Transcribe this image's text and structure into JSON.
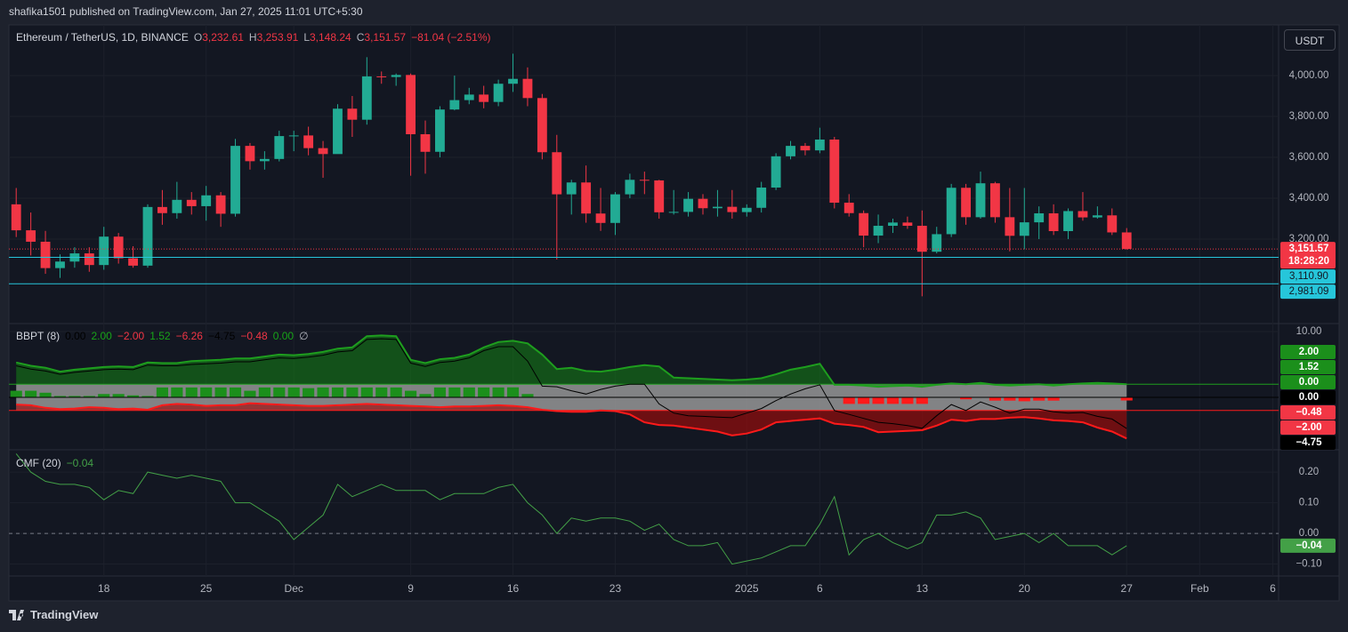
{
  "header": {
    "publisher": "shafika1501 published on TradingView.com, Jan 27, 2025 11:01 UTC+5:30"
  },
  "footer": {
    "brand": "TradingView"
  },
  "currency_button": "USDT",
  "chart_data": [
    {
      "type": "candlestick",
      "title": "Ethereum / TetherUS, 1D, BINANCE",
      "ohlc_legend": [
        [
          "O",
          "3,232.61"
        ],
        [
          "H",
          "3,253.91"
        ],
        [
          "L",
          "3,148.24"
        ],
        [
          "C",
          "3,151.57"
        ]
      ],
      "change": "−81.04 (−2.51%)",
      "up_color": "#22ab94",
      "down_color": "#f23645",
      "x": [
        0,
        1,
        2,
        3,
        4,
        5,
        6,
        7,
        8,
        9,
        10,
        11,
        12,
        13,
        14,
        15,
        16,
        17,
        18,
        19,
        20,
        21,
        22,
        23,
        24,
        25,
        26,
        27,
        28,
        29,
        30,
        31,
        32,
        33,
        34,
        35,
        36,
        37,
        38,
        39,
        40,
        41,
        42,
        43,
        44,
        45,
        46,
        47,
        48,
        49,
        50,
        51,
        52,
        53,
        54,
        55,
        56,
        57,
        58,
        59,
        60,
        61,
        62,
        63,
        64,
        65,
        66,
        67,
        68,
        69,
        70,
        71,
        72,
        73,
        74,
        75,
        76
      ],
      "open": [
        3370,
        3243,
        3187,
        3058,
        3090,
        3130,
        3073,
        3212,
        3106,
        3070,
        3357,
        3327,
        3392,
        3361,
        3414,
        3324,
        3656,
        3581,
        3592,
        3704,
        3707,
        3645,
        3616,
        3838,
        3784,
        3996,
        3993,
        4003,
        3713,
        3627,
        3834,
        3880,
        3907,
        3871,
        3960,
        3984,
        3890,
        3625,
        3419,
        3477,
        3325,
        3279,
        3419,
        3490,
        3487,
        3331,
        3333,
        3397,
        3351,
        3358,
        3332,
        3353,
        3452,
        3605,
        3656,
        3634,
        3687,
        3378,
        3327,
        3217,
        3265,
        3281,
        3265,
        3138,
        3224,
        3451,
        3307,
        3473,
        3307,
        3216,
        3282,
        3326,
        3239,
        3337,
        3306,
        3316,
        3232.61
      ],
      "high": [
        3450,
        3330,
        3240,
        3125,
        3160,
        3160,
        3260,
        3230,
        3165,
        3370,
        3440,
        3480,
        3430,
        3460,
        3430,
        3690,
        3670,
        3630,
        3730,
        3730,
        3750,
        3680,
        3860,
        3900,
        4090,
        4020,
        4010,
        4010,
        3780,
        3850,
        4000,
        3940,
        3950,
        3980,
        4107,
        4040,
        3910,
        3710,
        3490,
        3560,
        3450,
        3430,
        3520,
        3530,
        3490,
        3440,
        3430,
        3420,
        3440,
        3440,
        3370,
        3480,
        3620,
        3680,
        3670,
        3745,
        3700,
        3420,
        3340,
        3320,
        3300,
        3310,
        3340,
        3260,
        3470,
        3470,
        3530,
        3480,
        3450,
        3450,
        3360,
        3370,
        3350,
        3430,
        3360,
        3350,
        3253.91
      ],
      "low": [
        3210,
        3120,
        3030,
        3010,
        3060,
        3040,
        3050,
        3080,
        3060,
        3060,
        3270,
        3300,
        3320,
        3290,
        3260,
        3310,
        3540,
        3540,
        3580,
        3630,
        3610,
        3500,
        3620,
        3700,
        3760,
        3960,
        3950,
        3510,
        3520,
        3600,
        3830,
        3860,
        3840,
        3850,
        3920,
        3850,
        3590,
        3100,
        3320,
        3280,
        3240,
        3220,
        3400,
        3420,
        3300,
        3320,
        3310,
        3320,
        3310,
        3300,
        3310,
        3330,
        3440,
        3590,
        3610,
        3620,
        3350,
        3310,
        3160,
        3180,
        3230,
        3250,
        2920,
        3130,
        3210,
        3270,
        3300,
        3280,
        3140,
        3150,
        3200,
        3220,
        3200,
        3290,
        3300,
        3220,
        3148.24
      ],
      "close": [
        3243,
        3187,
        3058,
        3090,
        3130,
        3073,
        3212,
        3106,
        3070,
        3357,
        3327,
        3392,
        3361,
        3414,
        3324,
        3656,
        3581,
        3592,
        3704,
        3707,
        3645,
        3616,
        3838,
        3784,
        3996,
        3993,
        4003,
        3713,
        3627,
        3834,
        3880,
        3907,
        3871,
        3960,
        3984,
        3890,
        3625,
        3419,
        3477,
        3325,
        3279,
        3419,
        3490,
        3487,
        3331,
        3333,
        3397,
        3351,
        3358,
        3332,
        3353,
        3452,
        3605,
        3656,
        3634,
        3687,
        3378,
        3327,
        3217,
        3265,
        3281,
        3265,
        3138,
        3224,
        3451,
        3307,
        3473,
        3307,
        3216,
        3282,
        3326,
        3239,
        3337,
        3306,
        3316,
        3232.61,
        3151.57
      ],
      "xlim": [
        -0.5,
        86.4
      ],
      "xticks": [
        {
          "value": 6,
          "label": "18"
        },
        {
          "value": 13,
          "label": "25"
        },
        {
          "value": 19,
          "label": "Dec"
        },
        {
          "value": 27,
          "label": "9"
        },
        {
          "value": 34,
          "label": "16"
        },
        {
          "value": 41,
          "label": "23"
        },
        {
          "value": 50,
          "label": "2025"
        },
        {
          "value": 55,
          "label": "6"
        },
        {
          "value": 62,
          "label": "13"
        },
        {
          "value": 69,
          "label": "20"
        },
        {
          "value": 76,
          "label": "27"
        },
        {
          "value": 81,
          "label": "Feb"
        },
        {
          "value": 86,
          "label": "6"
        }
      ],
      "ylim": [
        2791,
        4248
      ],
      "yticks": [
        {
          "value": 3200,
          "label": "3,200.00"
        },
        {
          "value": 3400,
          "label": "3,400.00"
        },
        {
          "value": 3600,
          "label": "3,600.00"
        },
        {
          "value": 3800,
          "label": "3,800.00"
        },
        {
          "value": 4000,
          "label": "4,000.00"
        }
      ],
      "last_price": {
        "value": 3151.57,
        "label": "3,151.57",
        "countdown": "18:28:20"
      },
      "hlines": [
        {
          "value": 3110.9,
          "label": "3,110.90"
        },
        {
          "value": 2981.09,
          "label": "2,981.09"
        }
      ],
      "hline_color": "#26c6da",
      "grid": true
    },
    {
      "type": "bands",
      "title": "BBPT (8)",
      "legend_values": [
        "0.00",
        "2.00",
        "−2.00",
        "1.52",
        "−6.26",
        "−4.75",
        "−0.48",
        "0.00",
        "∅"
      ],
      "legend_colors": [
        "#000000",
        "#18a418",
        "#f23645",
        "#18a418",
        "#f23645",
        "#000000",
        "#f23645",
        "#18a418",
        "#b2b5be"
      ],
      "upper": [
        5.3,
        4.8,
        4.5,
        3.9,
        4.2,
        4.4,
        4.6,
        4.7,
        4.6,
        5.3,
        5.2,
        5.2,
        5.5,
        5.6,
        5.7,
        5.9,
        5.9,
        6.2,
        6.5,
        6.4,
        6.6,
        6.9,
        7.4,
        7.6,
        9.3,
        9.4,
        9.3,
        5.7,
        5.2,
        5.8,
        6.0,
        6.5,
        7.6,
        8.4,
        8.6,
        8.2,
        6.5,
        4.3,
        4.5,
        4.0,
        3.9,
        4.2,
        4.6,
        4.9,
        4.7,
        3.0,
        2.9,
        2.8,
        2.7,
        2.6,
        2.7,
        2.9,
        3.5,
        4.2,
        4.6,
        5.1,
        1.9,
        1.9,
        1.8,
        1.6,
        1.7,
        1.8,
        1.6,
        1.9,
        2.1,
        2.0,
        2.2,
        1.9,
        1.8,
        1.9,
        2.0,
        1.8,
        2.0,
        2.1,
        2.2,
        2.1,
        2
      ],
      "lower": [
        -1.1,
        -1.2,
        -1.6,
        -1.8,
        -1.7,
        -1.5,
        -1.6,
        -1.8,
        -1.7,
        -1.9,
        -1.2,
        -1.0,
        -1.1,
        -1.3,
        -1.2,
        -1.2,
        -0.9,
        -1.0,
        -1.1,
        -1.2,
        -1.3,
        -1.3,
        -1.2,
        -1.1,
        -1.0,
        -1.1,
        -1.2,
        -1.3,
        -1.4,
        -1.5,
        -1.4,
        -1.4,
        -1.3,
        -1.2,
        -1.3,
        -1.5,
        -1.9,
        -2.1,
        -2.2,
        -2.2,
        -2.0,
        -2.1,
        -2.6,
        -3.8,
        -4.2,
        -4.3,
        -4.6,
        -4.9,
        -5.2,
        -5.8,
        -5.5,
        -4.9,
        -3.8,
        -3.6,
        -3.4,
        -3.2,
        -4.0,
        -4.2,
        -4.5,
        -5.3,
        -5.2,
        -5.1,
        -5.0,
        -4.3,
        -3.4,
        -3.6,
        -3.3,
        -3.3,
        -3.1,
        -3.0,
        -3.2,
        -3.5,
        -3.6,
        -3.8,
        -4.6,
        -5.2,
        -6.26
      ],
      "power": [
        4.8,
        4.3,
        4.0,
        3.5,
        3.8,
        4.0,
        4.2,
        4.3,
        4.2,
        4.9,
        4.8,
        4.8,
        5.0,
        5.1,
        5.2,
        5.4,
        5.4,
        5.7,
        6.0,
        5.9,
        6.1,
        6.4,
        6.9,
        7.1,
        8.8,
        8.9,
        8.8,
        5.2,
        4.7,
        5.3,
        5.5,
        6.0,
        7.1,
        7.7,
        7.7,
        5.5,
        1.7,
        1.6,
        1.0,
        0.5,
        1.2,
        1.7,
        2.0,
        2.0,
        -1.0,
        -2.4,
        -2.8,
        -2.9,
        -3.0,
        -3.1,
        -2.4,
        -1.7,
        -0.5,
        0.5,
        1.3,
        1.9,
        -2.0,
        -2.6,
        -3.2,
        -3.8,
        -4.0,
        -4.3,
        -4.7,
        -2.8,
        -1.1,
        -2.0,
        -0.7,
        -1.5,
        -2.4,
        -1.8,
        -1.8,
        -2.2,
        -2.4,
        -2.3,
        -2.9,
        -3.3,
        -4.75
      ],
      "histogram": [
        1.0,
        1.0,
        0.7,
        0.2,
        0.2,
        0.2,
        0.5,
        0.5,
        0.3,
        0.2,
        1.5,
        1.5,
        1.5,
        1.5,
        1.5,
        1.5,
        1.0,
        1.5,
        1.5,
        1.5,
        1.4,
        1.5,
        1.5,
        1.5,
        1.5,
        1.5,
        1.5,
        1.0,
        0.5,
        1.5,
        1.5,
        1.5,
        1.5,
        1.5,
        1.52,
        0.5,
        0,
        0,
        0,
        0,
        0,
        0,
        0,
        0,
        0,
        0,
        0,
        0,
        0,
        0,
        0,
        0,
        0,
        0,
        0,
        0,
        0,
        -1.0,
        -1.0,
        -1.0,
        -1.0,
        -1.0,
        -1.0,
        0,
        0,
        -0.3,
        0,
        -0.5,
        -0.5,
        -0.6,
        -0.5,
        -0.5,
        0,
        0,
        0,
        0,
        -0.48
      ],
      "upper_color": "#1e9e1e",
      "lower_color": "#ff1a1a",
      "power_color": "#000000",
      "upper_fill": "rgba(20,130,20,0.55)",
      "lower_fill": "rgba(160,10,10,0.65)",
      "band_fill": "rgba(150,150,150,0.85)",
      "hist_up_color": "#1b8f1b",
      "hist_down_color": "#ff1a1a",
      "levels": [
        2,
        -2,
        0
      ],
      "level_colors": [
        "#1e9e1e",
        "#ff1a1a",
        "#000000"
      ],
      "ylim": [
        -7.84,
        11.08
      ],
      "yticks": [
        {
          "value": 10,
          "label": "10.00"
        }
      ],
      "scale_labels": [
        "2.00",
        "1.52",
        "0.00",
        "0.00",
        "−0.48",
        "−2.00",
        "−4.75"
      ],
      "scale_label_colors": [
        "#1b8f1b",
        "#1b8f1b",
        "#1b8f1b",
        "#000000",
        "#f23645",
        "#f23645",
        "#000000"
      ]
    },
    {
      "type": "line",
      "title": "CMF (20)",
      "legend_values": [
        "−0.04"
      ],
      "legend_colors": [
        "#43a047"
      ],
      "values": [
        0.26,
        0.2,
        0.17,
        0.16,
        0.16,
        0.15,
        0.11,
        0.14,
        0.13,
        0.2,
        0.19,
        0.18,
        0.19,
        0.18,
        0.17,
        0.1,
        0.1,
        0.07,
        0.04,
        -0.02,
        0.02,
        0.06,
        0.16,
        0.12,
        0.14,
        0.16,
        0.14,
        0.14,
        0.14,
        0.11,
        0.13,
        0.13,
        0.13,
        0.15,
        0.16,
        0.1,
        0.06,
        0.0,
        0.05,
        0.04,
        0.05,
        0.05,
        0.04,
        0.01,
        0.03,
        -0.02,
        -0.04,
        -0.04,
        -0.03,
        -0.1,
        -0.09,
        -0.08,
        -0.06,
        -0.04,
        -0.04,
        0.03,
        0.12,
        -0.07,
        -0.02,
        0.0,
        -0.03,
        -0.05,
        -0.03,
        0.06,
        0.06,
        0.07,
        0.05,
        -0.02,
        -0.01,
        0.0,
        -0.03,
        0.0,
        -0.04,
        -0.04,
        -0.04,
        -0.07,
        -0.04
      ],
      "color": "#43a047",
      "levels": [
        0
      ],
      "ylim": [
        -0.139,
        0.27
      ],
      "yticks": [
        {
          "value": 0.2,
          "label": "0.20"
        },
        {
          "value": 0.1,
          "label": "0.10"
        },
        {
          "value": 0,
          "label": "0.00"
        },
        {
          "value": -0.1,
          "label": "−0.10"
        }
      ],
      "scale_labels": [
        "−0.04"
      ],
      "scale_label_colors": [
        "#43a047"
      ]
    }
  ]
}
